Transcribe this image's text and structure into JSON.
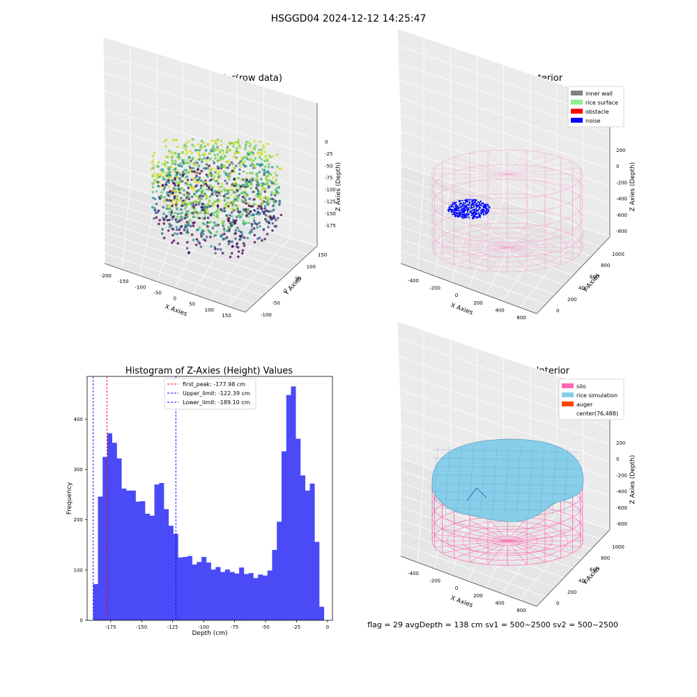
{
  "suptitle": "HSGGD04 2024-12-12 14:25:47",
  "panels": {
    "raw": {
      "title": "3D Plot of Silo Interior(row data)",
      "xlabel": "X Axies",
      "ylabel": "Y Axies",
      "zlabel": "Z Axies (Depth)",
      "xticks": [
        "-200",
        "-150",
        "-100",
        "-50",
        "0",
        "50",
        "100",
        "150"
      ],
      "yticks": [
        "-100",
        "-50",
        "0",
        "50",
        "100",
        "150"
      ],
      "zticks": [
        "0",
        "-25",
        "-50",
        "-75",
        "-100",
        "-125",
        "-150",
        "-175"
      ]
    },
    "classify": {
      "title": "3D classify of Silo Interior",
      "xlabel": "X Axies",
      "ylabel": "Y Axies",
      "zlabel": "Z Axies (Depth)",
      "xticks": [
        "-400",
        "-200",
        "0",
        "200",
        "400",
        "600"
      ],
      "yticks": [
        "0",
        "200",
        "400",
        "600",
        "800",
        "1000"
      ],
      "zticks": [
        "200",
        "0",
        "-200",
        "-400",
        "-600",
        "-800"
      ],
      "legend": [
        {
          "label": "inner wall",
          "color": "#808080"
        },
        {
          "label": "rice surface",
          "color": "#90ee90"
        },
        {
          "label": "obstacle",
          "color": "#ff0000"
        },
        {
          "label": "noise",
          "color": "#0000ff"
        }
      ]
    },
    "simulation": {
      "title": "3D simulation of Silo Interior",
      "xlabel": "X Axies",
      "ylabel": "Y Axies",
      "zlabel": "Z Axies (Depth)",
      "xticks": [
        "-400",
        "-200",
        "0",
        "200",
        "400",
        "600"
      ],
      "yticks": [
        "0",
        "200",
        "400",
        "600",
        "800",
        "1000"
      ],
      "zticks": [
        "200",
        "0",
        "-200",
        "-400",
        "-600",
        "-800"
      ],
      "legend": [
        {
          "label": "silo",
          "color": "#ff69b4"
        },
        {
          "label": "rice simulation",
          "color": "#87ceeb"
        },
        {
          "label": "auger",
          "color": "#ff4500"
        },
        {
          "label": "center(76,488)",
          "color": "none"
        }
      ]
    }
  },
  "status_line": "flag = 29  avgDepth = 138 cm  sv1 = 500~2500  sv2 = 500~2500",
  "chart_data": {
    "type": "bar",
    "title": "Histogram of Z-Axies (Height) Values",
    "xlabel": "Depth (cm)",
    "ylabel": "Frequency",
    "xlim": [
      -194,
      4
    ],
    "ylim": [
      0,
      485
    ],
    "xticks": [
      -175,
      -150,
      -125,
      -100,
      -75,
      -50,
      -25,
      0
    ],
    "yticks": [
      0,
      100,
      200,
      300,
      400
    ],
    "bin_start": -189.1,
    "bin_width": 3.8,
    "bar_color": "#4a4af7",
    "values": [
      72,
      246,
      325,
      372,
      353,
      322,
      262,
      258,
      258,
      236,
      237,
      212,
      208,
      270,
      273,
      221,
      188,
      172,
      125,
      126,
      128,
      111,
      116,
      126,
      115,
      101,
      106,
      96,
      101,
      96,
      93,
      105,
      92,
      94,
      84,
      91,
      89,
      99,
      140,
      196,
      336,
      448,
      465,
      361,
      288,
      258,
      272,
      156,
      27
    ],
    "lines": [
      {
        "label": "first_peak: -177.98 cm",
        "value": -177.98,
        "color": "#ff0000"
      },
      {
        "label": "Upper_limit: -122.39 cm",
        "value": -122.39,
        "color": "#0000ff"
      },
      {
        "label": "Lower_limit: -189.10 cm",
        "value": -189.1,
        "color": "#0000ff"
      }
    ],
    "legend_position": "upper center"
  }
}
